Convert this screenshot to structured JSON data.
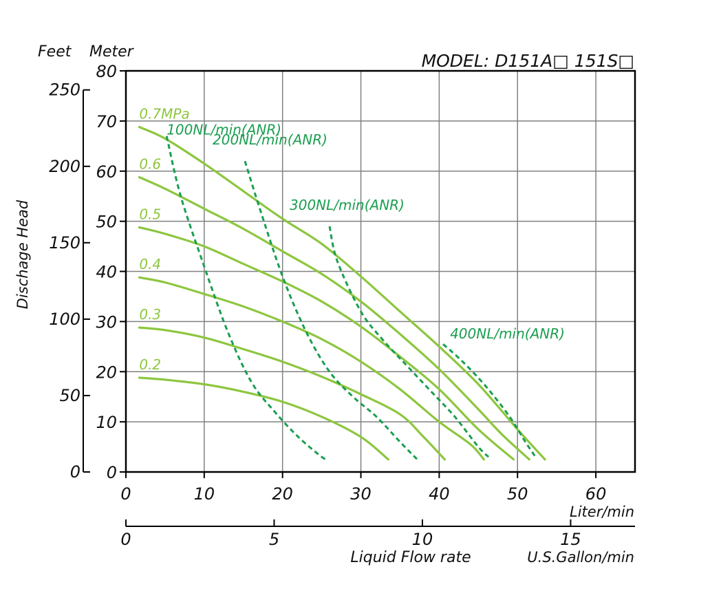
{
  "chart_data": {
    "type": "line",
    "title": "MODEL: D151A□  151S□",
    "left_header": {
      "feet": "Feet",
      "meter": "Meter"
    },
    "ylabel": "Dischage Head",
    "xlabel": "Liquid Flow rate",
    "x_unit_liter": "Liter/min",
    "x_unit_gallon": "U.S.Gallon/min",
    "xlim": [
      0,
      65
    ],
    "ylim": [
      0,
      80
    ],
    "grid": true,
    "meter_ticks": [
      "0",
      "10",
      "20",
      "30",
      "40",
      "50",
      "60",
      "70",
      "80"
    ],
    "feet_ticks": [
      {
        "label": "0",
        "value": 0
      },
      {
        "label": "50",
        "value": 50
      },
      {
        "label": "100",
        "value": 100
      },
      {
        "label": "150",
        "value": 150
      },
      {
        "label": "200",
        "value": 200
      },
      {
        "label": "250",
        "value": 250
      }
    ],
    "liter_ticks": [
      "0",
      "10",
      "20",
      "30",
      "40",
      "50",
      "60"
    ],
    "gallon_ticks": [
      {
        "label": "0",
        "value": 0
      },
      {
        "label": "5",
        "value": 5
      },
      {
        "label": "10",
        "value": 10
      },
      {
        "label": "15",
        "value": 15
      }
    ],
    "pressure_series": [
      {
        "name": "0.7MPa",
        "points": [
          [
            1.7,
            68.8
          ],
          [
            5,
            66.5
          ],
          [
            10,
            61.5
          ],
          [
            15,
            56.0
          ],
          [
            20,
            50.5
          ],
          [
            25,
            45.5
          ],
          [
            30,
            39.0
          ],
          [
            35,
            32.0
          ],
          [
            40,
            25.0
          ],
          [
            45,
            17.5
          ],
          [
            50,
            8.5
          ],
          [
            53.5,
            2.5
          ]
        ]
      },
      {
        "name": "0.6",
        "points": [
          [
            1.7,
            58.8
          ],
          [
            5,
            56.5
          ],
          [
            10,
            52.5
          ],
          [
            15,
            48.5
          ],
          [
            20,
            44.0
          ],
          [
            25,
            39.5
          ],
          [
            30,
            34.0
          ],
          [
            35,
            27.5
          ],
          [
            40,
            20.5
          ],
          [
            45,
            12.5
          ],
          [
            48,
            7.5
          ],
          [
            51.5,
            2.5
          ]
        ]
      },
      {
        "name": "0.5",
        "points": [
          [
            1.7,
            48.8
          ],
          [
            5,
            47.5
          ],
          [
            10,
            45.0
          ],
          [
            15,
            41.5
          ],
          [
            20,
            38.0
          ],
          [
            25,
            34.0
          ],
          [
            30,
            29.0
          ],
          [
            35,
            23.0
          ],
          [
            40,
            16.5
          ],
          [
            45,
            8.5
          ],
          [
            49.5,
            2.5
          ]
        ]
      },
      {
        "name": "0.4",
        "points": [
          [
            1.7,
            38.8
          ],
          [
            5,
            37.8
          ],
          [
            10,
            35.5
          ],
          [
            15,
            33.0
          ],
          [
            20,
            30.0
          ],
          [
            25,
            26.5
          ],
          [
            30,
            22.0
          ],
          [
            35,
            16.5
          ],
          [
            40,
            10.0
          ],
          [
            44,
            5.5
          ],
          [
            45.7,
            2.5
          ]
        ]
      },
      {
        "name": "0.3",
        "points": [
          [
            1.7,
            28.8
          ],
          [
            5,
            28.3
          ],
          [
            10,
            26.8
          ],
          [
            15,
            24.5
          ],
          [
            20,
            22.0
          ],
          [
            25,
            19.0
          ],
          [
            30,
            15.5
          ],
          [
            35,
            11.5
          ],
          [
            38,
            7.0
          ],
          [
            40.7,
            2.5
          ]
        ]
      },
      {
        "name": "0.2",
        "points": [
          [
            1.7,
            18.8
          ],
          [
            5,
            18.4
          ],
          [
            10,
            17.5
          ],
          [
            15,
            16.0
          ],
          [
            20,
            14.0
          ],
          [
            25,
            11.0
          ],
          [
            30,
            7.0
          ],
          [
            33.5,
            2.5
          ]
        ]
      }
    ],
    "air_series": [
      {
        "name": "100NL/min(ANR)",
        "points": [
          [
            5.2,
            67
          ],
          [
            7,
            55
          ],
          [
            10,
            41
          ],
          [
            13,
            28
          ],
          [
            16,
            18
          ],
          [
            19,
            12
          ],
          [
            22,
            7
          ],
          [
            25,
            3
          ],
          [
            25.8,
            2.5
          ]
        ]
      },
      {
        "name": "200NL/min(ANR)",
        "points": [
          [
            15.2,
            62
          ],
          [
            17,
            53
          ],
          [
            20,
            39
          ],
          [
            23,
            28
          ],
          [
            26,
            20
          ],
          [
            29,
            15
          ],
          [
            32,
            11
          ],
          [
            35,
            6
          ],
          [
            37.2,
            2.5
          ]
        ]
      },
      {
        "name": "300NL/min(ANR)",
        "points": [
          [
            26,
            49
          ],
          [
            27,
            42
          ],
          [
            30,
            32
          ],
          [
            33,
            26
          ],
          [
            36,
            21
          ],
          [
            39,
            16
          ],
          [
            42,
            11
          ],
          [
            45,
            5
          ],
          [
            46.3,
            3
          ]
        ]
      },
      {
        "name": "400NL/min(ANR)",
        "points": [
          [
            40.5,
            25.5
          ],
          [
            43,
            22
          ],
          [
            46,
            17
          ],
          [
            49,
            11
          ],
          [
            51,
            6
          ],
          [
            52.3,
            3
          ]
        ]
      }
    ],
    "colors": {
      "pressure": "#8dc63f",
      "air": "#1a9e50",
      "grid": "#808080",
      "axis": "#000000"
    }
  }
}
